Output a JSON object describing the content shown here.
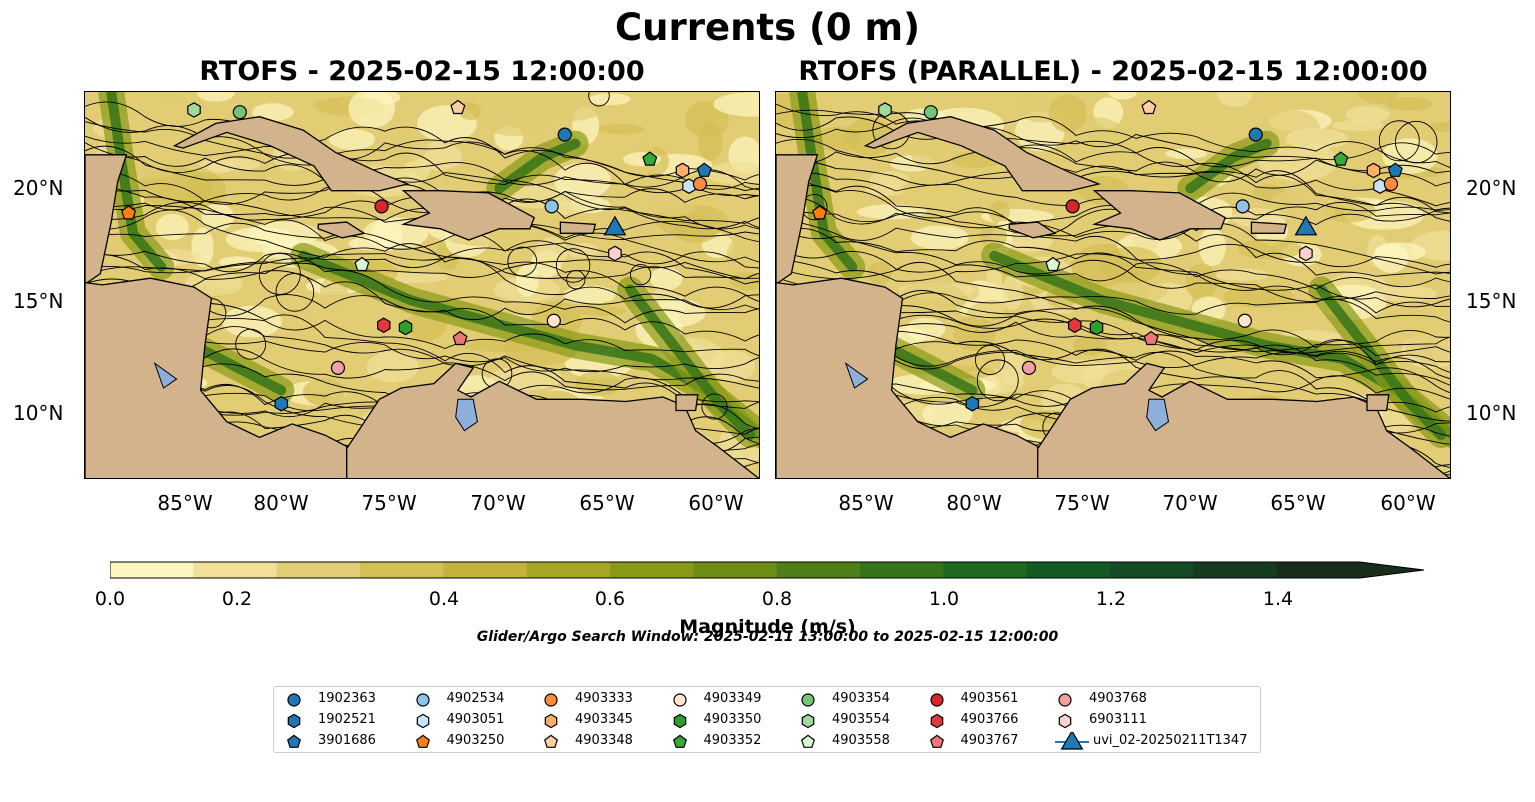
{
  "figure": {
    "suptitle": "Currents (0 m)",
    "left_title": "RTOFS - 2025-02-15 12:00:00",
    "right_title": "RTOFS (PARALLEL) - 2025-02-15 12:00:00",
    "lat_labels": [
      "20°N",
      "15°N",
      "10°N"
    ],
    "lon_labels": [
      "85°W",
      "80°W",
      "75°W",
      "70°W",
      "65°W",
      "60°W"
    ],
    "colorbar_ticks": [
      "0.0",
      "0.2",
      "0.4",
      "0.6",
      "0.8",
      "1.0",
      "1.2",
      "1.4"
    ],
    "colorbar_label": "Magnitude (m/s)",
    "search_window": "Glider/Argo Search Window: 2025-02-11 13:00:00 to 2025-02-15 12:00:00",
    "colorbar_range": [
      0.0,
      1.5
    ],
    "colorbar_extend": "max"
  },
  "colors": {
    "land": "#d2b38c",
    "lakes": "#8eaedc",
    "colormap": [
      "#fdf6c0",
      "#f1df9a",
      "#e2cc74",
      "#d4bf55",
      "#c3b23b",
      "#a7a524",
      "#8a9a17",
      "#6e8d15",
      "#4f7f18",
      "#367419",
      "#1f6920",
      "#145a24",
      "#134b24",
      "#173b20",
      "#1a2d1a"
    ]
  },
  "map_extent": {
    "lon": [
      -89.0,
      -58.0
    ],
    "lat": [
      7.0,
      24.3
    ]
  },
  "legend_items": [
    {
      "id": "1902363",
      "marker": "circle",
      "color": "#1f77b4"
    },
    {
      "id": "1902521",
      "marker": "hexagon",
      "color": "#1f77b4"
    },
    {
      "id": "3901686",
      "marker": "pentagon",
      "color": "#1f77b4"
    },
    {
      "id": "4902534",
      "marker": "circle",
      "color": "#8fc2e8"
    },
    {
      "id": "4903051",
      "marker": "hexagon",
      "color": "#c9e4f7"
    },
    {
      "id": "4903250",
      "marker": "pentagon",
      "color": "#ff7f0e"
    },
    {
      "id": "4903333",
      "marker": "circle",
      "color": "#fd8d3c"
    },
    {
      "id": "4903345",
      "marker": "hexagon",
      "color": "#fdae6b"
    },
    {
      "id": "4903348",
      "marker": "pentagon",
      "color": "#fdd0a2"
    },
    {
      "id": "4903349",
      "marker": "circle",
      "color": "#fee6ce"
    },
    {
      "id": "4903350",
      "marker": "hexagon",
      "color": "#2ca02c"
    },
    {
      "id": "4903352",
      "marker": "pentagon",
      "color": "#38a83a"
    },
    {
      "id": "4903354",
      "marker": "circle",
      "color": "#74c476"
    },
    {
      "id": "4903554",
      "marker": "hexagon",
      "color": "#a1d99b"
    },
    {
      "id": "4903558",
      "marker": "pentagon",
      "color": "#d9f5d3"
    },
    {
      "id": "4903561",
      "marker": "circle",
      "color": "#d62728"
    },
    {
      "id": "4903766",
      "marker": "hexagon",
      "color": "#e0393c"
    },
    {
      "id": "4903767",
      "marker": "pentagon",
      "color": "#f07577"
    },
    {
      "id": "4903768",
      "marker": "circle",
      "color": "#f4a0a0"
    },
    {
      "id": "6903111",
      "marker": "hexagon",
      "color": "#fbd0d0"
    },
    {
      "id": "uvi_02-20250211T1347",
      "marker": "triangle",
      "color": "#1f77b4"
    }
  ],
  "platforms": [
    {
      "id": "1902363",
      "lon": -67.0,
      "lat": 22.4
    },
    {
      "id": "1902521",
      "lon": -80.0,
      "lat": 10.4
    },
    {
      "id": "3901686",
      "lon": -60.6,
      "lat": 20.8
    },
    {
      "id": "4902534",
      "lon": -67.6,
      "lat": 19.2
    },
    {
      "id": "4903051",
      "lon": -61.3,
      "lat": 20.1
    },
    {
      "id": "4903250",
      "lon": -87.0,
      "lat": 18.9
    },
    {
      "id": "4903333",
      "lon": -60.8,
      "lat": 20.2
    },
    {
      "id": "4903345",
      "lon": -61.6,
      "lat": 20.8
    },
    {
      "id": "4903348",
      "lon": -71.9,
      "lat": 23.6
    },
    {
      "id": "4903349",
      "lon": -67.5,
      "lat": 14.1
    },
    {
      "id": "4903350",
      "lon": -74.3,
      "lat": 13.8
    },
    {
      "id": "4903352",
      "lon": -63.1,
      "lat": 21.3
    },
    {
      "id": "4903354",
      "lon": -81.9,
      "lat": 23.4
    },
    {
      "id": "4903554",
      "lon": -84.0,
      "lat": 23.5
    },
    {
      "id": "4903558",
      "lon": -76.3,
      "lat": 16.6
    },
    {
      "id": "4903561",
      "lon": -75.4,
      "lat": 19.2
    },
    {
      "id": "4903766",
      "lon": -75.3,
      "lat": 13.9
    },
    {
      "id": "4903767",
      "lon": -71.8,
      "lat": 13.3
    },
    {
      "id": "4903768",
      "lon": -77.4,
      "lat": 12.0
    },
    {
      "id": "6903111",
      "lon": -64.7,
      "lat": 17.1
    },
    {
      "id": "uvi_02-20250211T1347",
      "lon": -64.7,
      "lat": 18.2
    }
  ]
}
